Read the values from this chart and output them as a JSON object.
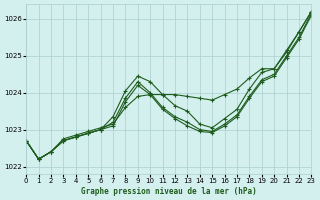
{
  "xlabel": "Graphe pression niveau de la mer (hPa)",
  "background_color": "#d4f0ee",
  "grid_color": "#aacece",
  "line_color": "#1e5c1e",
  "xlim": [
    0,
    23
  ],
  "ylim": [
    1021.8,
    1026.4
  ],
  "yticks": [
    1022,
    1023,
    1024,
    1025,
    1026
  ],
  "xticks": [
    0,
    1,
    2,
    3,
    4,
    5,
    6,
    7,
    8,
    9,
    10,
    11,
    12,
    13,
    14,
    15,
    16,
    17,
    18,
    19,
    20,
    21,
    22,
    23
  ],
  "series": [
    [
      1022.7,
      1022.2,
      1022.4,
      1022.7,
      1022.8,
      1022.9,
      1023.0,
      1023.35,
      1024.05,
      1024.45,
      1024.3,
      1023.95,
      1023.65,
      1023.5,
      1023.15,
      1023.05,
      1023.3,
      1023.55,
      1024.1,
      1024.55,
      1024.65,
      1025.15,
      1025.65,
      1026.2
    ],
    [
      1022.7,
      1022.2,
      1022.4,
      1022.7,
      1022.8,
      1022.9,
      1023.0,
      1023.2,
      1023.85,
      1024.3,
      1024.0,
      1023.6,
      1023.35,
      1023.2,
      1023.0,
      1022.95,
      1023.15,
      1023.4,
      1023.9,
      1024.35,
      1024.5,
      1025.0,
      1025.5,
      1026.15
    ],
    [
      1022.7,
      1022.2,
      1022.4,
      1022.7,
      1022.8,
      1022.9,
      1023.0,
      1023.1,
      1023.75,
      1024.2,
      1023.95,
      1023.55,
      1023.3,
      1023.1,
      1022.95,
      1022.92,
      1023.1,
      1023.35,
      1023.85,
      1024.3,
      1024.45,
      1024.95,
      1025.45,
      1026.1
    ],
    [
      1022.7,
      1022.2,
      1022.4,
      1022.75,
      1022.85,
      1022.95,
      1023.05,
      1023.15,
      1023.6,
      1023.9,
      1023.95,
      1023.95,
      1023.95,
      1023.9,
      1023.85,
      1023.8,
      1023.95,
      1024.1,
      1024.4,
      1024.65,
      1024.65,
      1025.1,
      1025.65,
      1026.2
    ]
  ]
}
